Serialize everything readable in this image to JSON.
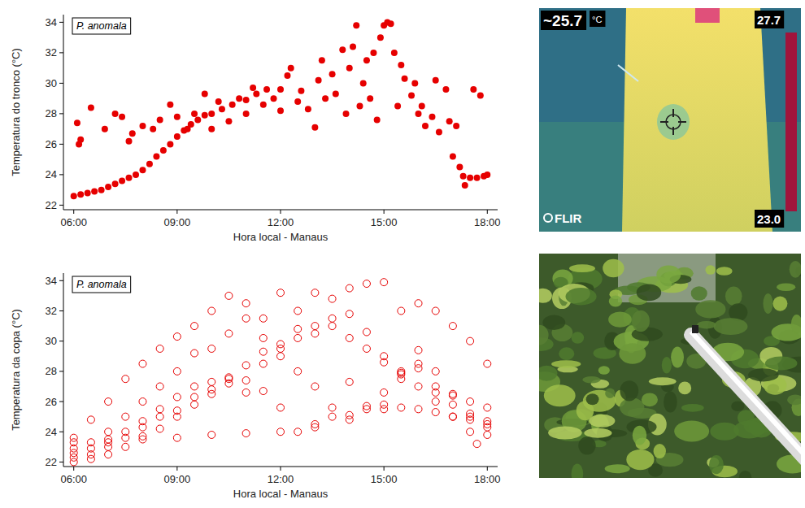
{
  "chart_data": [
    {
      "type": "scatter",
      "annotation": "P. anomala",
      "y_label": "Temperatura do tronco (°C)",
      "x_label": "Hora local - Manaus",
      "xlim": [
        5.7,
        18.3
      ],
      "ylim": [
        21.7,
        34.5
      ],
      "xticks": [
        {
          "value": 6,
          "label": "06:00"
        },
        {
          "value": 9,
          "label": "09:00"
        },
        {
          "value": 12,
          "label": "12:00"
        },
        {
          "value": 15,
          "label": "15:00"
        },
        {
          "value": 18,
          "label": "18:00"
        }
      ],
      "yticks": [
        22,
        24,
        26,
        28,
        30,
        32,
        34
      ],
      "grid": false,
      "x": [
        6.0,
        6.2,
        6.4,
        6.6,
        6.8,
        7.0,
        7.2,
        7.4,
        7.6,
        7.8,
        8.0,
        8.2,
        8.4,
        8.6,
        8.8,
        9.0,
        9.2,
        9.4,
        9.6,
        9.8,
        10.0,
        10.3,
        10.6,
        11.0,
        11.3,
        11.6,
        12.0,
        6.1,
        6.15,
        6.2,
        6.5,
        6.9,
        7.2,
        7.4,
        7.6,
        7.7,
        8.0,
        8.3,
        8.5,
        8.8,
        9.0,
        9.3,
        9.5,
        9.8,
        10.0,
        10.2,
        10.5,
        10.8,
        11.0,
        11.2,
        11.5,
        11.8,
        12.0,
        12.2,
        12.3,
        12.5,
        12.6,
        12.8,
        13.0,
        13.1,
        13.2,
        13.3,
        13.5,
        13.6,
        13.8,
        13.9,
        14.0,
        14.1,
        14.2,
        14.3,
        14.4,
        14.5,
        14.6,
        14.7,
        14.8,
        14.9,
        15.0,
        15.1,
        15.2,
        15.3,
        15.4,
        15.5,
        15.6,
        15.8,
        15.9,
        16.0,
        16.1,
        16.2,
        16.4,
        16.5,
        16.6,
        16.8,
        16.9,
        17.0,
        17.1,
        17.2,
        17.3,
        17.35,
        17.5,
        17.6,
        17.7,
        17.8,
        17.9,
        18.0
      ],
      "series": [
        {
          "color": "#e60000",
          "marker": "filled",
          "values": [
            22.6,
            22.7,
            22.8,
            22.9,
            23.0,
            23.2,
            23.4,
            23.6,
            23.8,
            24.0,
            24.3,
            24.7,
            25.2,
            25.6,
            26.0,
            26.5,
            26.9,
            27.3,
            27.6,
            27.9,
            28.0,
            28.3,
            28.6,
            28.9,
            29.3,
            29.6,
            29.6,
            27.4,
            26.0,
            26.3,
            28.4,
            27.0,
            28.0,
            27.8,
            26.2,
            26.7,
            27.2,
            27.0,
            27.6,
            28.6,
            27.8,
            27.0,
            28.0,
            29.3,
            27.0,
            28.8,
            27.5,
            29.0,
            28.0,
            29.7,
            28.6,
            29.0,
            28.2,
            30.5,
            31.0,
            28.8,
            29.5,
            28.3,
            27.1,
            30.2,
            31.5,
            29.0,
            30.6,
            29.3,
            32.2,
            28.0,
            31.0,
            32.4,
            33.8,
            28.5,
            30.0,
            31.5,
            29.0,
            32.0,
            27.6,
            33.0,
            33.8,
            34.0,
            33.9,
            32.0,
            28.5,
            31.2,
            30.3,
            29.2,
            30.0,
            28.0,
            28.5,
            27.2,
            27.8,
            30.2,
            26.8,
            29.6,
            27.5,
            25.2,
            27.2,
            24.5,
            23.9,
            23.3,
            23.8,
            29.6,
            23.8,
            29.2,
            23.9,
            24.0
          ]
        }
      ]
    },
    {
      "type": "scatter",
      "annotation": "P. anomala",
      "y_label": "Temperatura da copa (°C)",
      "x_label": "Hora local - Manaus",
      "xlim": [
        5.7,
        18.3
      ],
      "ylim": [
        21.7,
        34.5
      ],
      "xticks": [
        {
          "value": 6,
          "label": "06:00"
        },
        {
          "value": 9,
          "label": "09:00"
        },
        {
          "value": 12,
          "label": "12:00"
        },
        {
          "value": 15,
          "label": "15:00"
        },
        {
          "value": 18,
          "label": "18:00"
        }
      ],
      "yticks": [
        22,
        24,
        26,
        28,
        30,
        32,
        34
      ],
      "grid": false,
      "x": [
        6.0,
        7,
        8,
        9,
        10,
        11,
        12,
        13,
        14,
        15,
        15.5,
        16,
        16.5,
        17,
        17.5,
        18,
        6.0,
        6.5,
        7,
        7.5,
        8,
        8.5,
        9,
        9.5,
        10,
        10.5,
        11,
        11.5,
        12,
        12.5,
        13,
        13.5,
        14,
        14.5,
        15,
        15.5,
        16,
        16.5,
        17,
        17.5,
        18,
        6.0,
        6.5,
        7,
        7.5,
        8,
        8.5,
        9,
        9.5,
        10,
        10.5,
        11,
        11.5,
        12,
        12.5,
        13,
        13.5,
        14,
        14.5,
        15,
        15.5,
        16,
        16.5,
        17,
        17.5,
        18,
        6.0,
        6.5,
        7,
        7.5,
        8,
        8.5,
        9,
        9.5,
        10,
        10.5,
        11,
        11.5,
        12,
        12.5,
        13,
        13.5,
        14,
        14.5,
        15,
        15.5,
        16,
        16.5,
        17,
        17.5,
        18,
        6.0,
        6.5,
        7,
        7.5,
        8,
        8.5,
        9,
        9.5,
        10,
        10.5,
        11,
        11.5,
        12,
        12.5,
        13,
        13.5,
        14,
        14.5,
        15,
        15.5,
        16,
        16.5,
        17,
        17.5,
        18,
        6.0,
        6.5,
        7,
        7.5,
        8,
        8.5,
        9,
        9.5,
        10,
        10.5,
        11,
        11.5,
        12,
        12.5,
        13,
        13.5,
        14,
        14.5,
        15,
        15.5,
        16,
        16.5,
        17,
        17.5,
        17.7,
        18
      ],
      "series": [
        {
          "color": "#e60000",
          "marker": "open",
          "values": [
            23.3,
            23.5,
            23.7,
            23.6,
            23.8,
            23.9,
            24.0,
            24.3,
            24.8,
            25.5,
            25.6,
            25.5,
            25.3,
            25.0,
            24.8,
            24.5,
            23.6,
            24.8,
            26.0,
            27.5,
            28.5,
            29.5,
            30.3,
            31.0,
            32.0,
            33.0,
            32.5,
            31.5,
            33.2,
            32.0,
            33.2,
            31.0,
            33.5,
            33.8,
            33.9,
            32.0,
            32.5,
            32.0,
            31.0,
            30.0,
            28.5,
            22.9,
            23.3,
            24.0,
            25.0,
            26.0,
            27.0,
            28.0,
            29.2,
            29.5,
            30.5,
            31.5,
            30.2,
            29.0,
            30.8,
            31.0,
            32.8,
            31.8,
            30.6,
            29.0,
            28.0,
            28.5,
            27.0,
            26.5,
            26.0,
            25.6,
            22.6,
            22.9,
            23.3,
            24.0,
            24.7,
            25.5,
            26.3,
            27.0,
            27.3,
            27.5,
            26.6,
            28.5,
            29.8,
            28.0,
            27.0,
            25.6,
            27.3,
            25.7,
            26.6,
            27.8,
            28.2,
            26.6,
            25.8,
            25.2,
            24.7,
            22.3,
            22.5,
            23.0,
            23.6,
            24.3,
            25.0,
            25.4,
            26.3,
            26.8,
            27.2,
            27.4,
            26.7,
            25.6,
            24.0,
            24.5,
            25.0,
            25.1,
            25.5,
            25.8,
            27.5,
            29.4,
            28.0,
            26.4,
            25.0,
            24.3,
            22.0,
            22.2,
            22.5,
            23.0,
            23.5,
            24.2,
            25.0,
            25.8,
            26.5,
            27.6,
            28.4,
            29.3,
            29.5,
            30.2,
            30.5,
            31.5,
            30.2,
            29.5,
            28.6,
            27.9,
            27.0,
            26.0,
            25.0,
            24.0,
            23.2,
            23.8
          ]
        }
      ]
    }
  ],
  "photos": {
    "thermal": {
      "spot_temperature": "~25.7",
      "unit": "°C",
      "scale_max": "27.7",
      "scale_min": "23.0",
      "brand": "FLIR"
    }
  }
}
